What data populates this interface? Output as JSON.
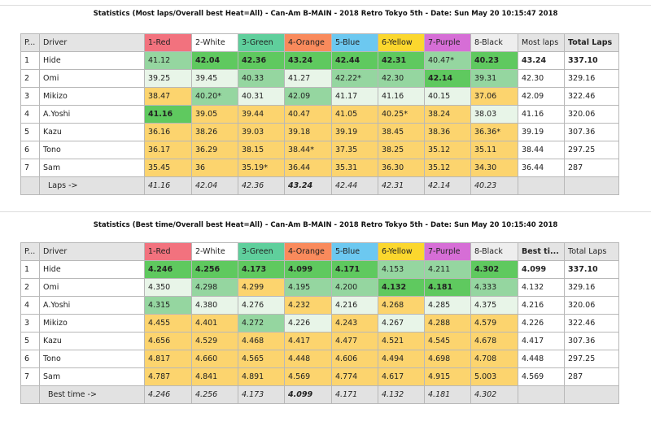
{
  "colors": {
    "G": "#5fc95f",
    "M": "#95d6a0",
    "L": "#e8f5e8",
    "Y": "#fcd46e",
    "W": "#ffffff"
  },
  "car_colors": [
    "#f2727e",
    "#ffffff",
    "#5fcf9c",
    "#f98a5c",
    "#6cc8f0",
    "#fbd72e",
    "#d66ed6",
    "#eeeeee"
  ],
  "tables": [
    {
      "title": "Statistics (Most laps/Overall best Heat=All) - Can-Am B-MAIN - 2018 Retro Tokyo 5th - Date: Sun May 20 10:15:47 2018",
      "headers": [
        "P...",
        "Driver",
        "1-Red",
        "2-White",
        "3-Green",
        "4-Orange",
        "5-Blue",
        "6-Yellow",
        "7-Purple",
        "8-Black",
        "Most laps",
        "Total Laps"
      ],
      "bold_header": 11,
      "rows": [
        {
          "p": "1",
          "driver": "Hide",
          "vals": [
            "41.12",
            "42.04",
            "42.36",
            "43.24",
            "42.44",
            "42.31",
            "40.47*",
            "40.23"
          ],
          "colors": "MGGGGGMG",
          "bold": "01111101",
          "best": "43.24",
          "total": "337.10",
          "best_bold": true,
          "total_bold": true
        },
        {
          "p": "2",
          "driver": "Omi",
          "vals": [
            "39.25",
            "39.45",
            "40.33",
            "41.27",
            "42.22*",
            "42.30",
            "42.14",
            "39.31"
          ],
          "colors": "LLMLMMGM",
          "bold": "00000010",
          "best": "42.30",
          "total": "329.16"
        },
        {
          "p": "3",
          "driver": "Mikizo",
          "vals": [
            "38.47",
            "40.20*",
            "40.31",
            "42.09",
            "41.17",
            "41.16",
            "40.15",
            "37.06"
          ],
          "colors": "YMLMLLLY",
          "bold": "00000000",
          "best": "42.09",
          "total": "322.46"
        },
        {
          "p": "4",
          "driver": "A.Yoshi",
          "vals": [
            "41.16",
            "39.05",
            "39.44",
            "40.47",
            "41.05",
            "40.25*",
            "38.24",
            "38.03"
          ],
          "colors": "GYYYYYYL",
          "bold": "10000000",
          "best": "41.16",
          "total": "320.06"
        },
        {
          "p": "5",
          "driver": "Kazu",
          "vals": [
            "36.16",
            "38.26",
            "39.03",
            "39.18",
            "39.19",
            "38.45",
            "38.36",
            "36.36*"
          ],
          "colors": "YYYYYYYY",
          "bold": "00000000",
          "best": "39.19",
          "total": "307.36"
        },
        {
          "p": "6",
          "driver": "Tono",
          "vals": [
            "36.17",
            "36.29",
            "38.15",
            "38.44*",
            "37.35",
            "38.25",
            "35.12",
            "35.11"
          ],
          "colors": "YYYYYYYY",
          "bold": "00000000",
          "best": "38.44",
          "total": "297.25"
        },
        {
          "p": "7",
          "driver": "Sam",
          "vals": [
            "35.45",
            "36",
            "35.19*",
            "36.44",
            "35.31",
            "36.30",
            "35.12",
            "34.30"
          ],
          "colors": "YYYYYYYY",
          "bold": "00000000",
          "best": "36.44",
          "total": "287"
        }
      ],
      "footer": {
        "label": "Laps ->",
        "vals": [
          "41.16",
          "42.04",
          "42.36",
          "43.24",
          "42.44",
          "42.31",
          "42.14",
          "40.23"
        ],
        "bold": "00010000"
      }
    },
    {
      "title": "Statistics (Best time/Overall best Heat=All) - Can-Am B-MAIN - 2018 Retro Tokyo 5th - Date: Sun May 20 10:15:40 2018",
      "headers": [
        "P...",
        "Driver",
        "1-Red",
        "2-White",
        "3-Green",
        "4-Orange",
        "5-Blue",
        "6-Yellow",
        "7-Purple",
        "8-Black",
        "Best ti...",
        "Total Laps"
      ],
      "bold_header": 10,
      "rows": [
        {
          "p": "1",
          "driver": "Hide",
          "vals": [
            "4.246",
            "4.256",
            "4.173",
            "4.099",
            "4.171",
            "4.153",
            "4.211",
            "4.302"
          ],
          "colors": "GGGGGMMG",
          "bold": "11111001",
          "best": "4.099",
          "total": "337.10",
          "best_bold": true,
          "total_bold": true
        },
        {
          "p": "2",
          "driver": "Omi",
          "vals": [
            "4.350",
            "4.298",
            "4.299",
            "4.195",
            "4.200",
            "4.132",
            "4.181",
            "4.333"
          ],
          "colors": "LMYMMGGM",
          "bold": "00000110",
          "best": "4.132",
          "total": "329.16"
        },
        {
          "p": "4",
          "driver": "A.Yoshi",
          "vals": [
            "4.315",
            "4.380",
            "4.276",
            "4.232",
            "4.216",
            "4.268",
            "4.285",
            "4.375"
          ],
          "colors": "MLLYLYLL",
          "bold": "00000000",
          "best": "4.216",
          "total": "320.06"
        },
        {
          "p": "3",
          "driver": "Mikizo",
          "vals": [
            "4.455",
            "4.401",
            "4.272",
            "4.226",
            "4.243",
            "4.267",
            "4.288",
            "4.579"
          ],
          "colors": "YYMLYLYY",
          "bold": "00000000",
          "best": "4.226",
          "total": "322.46"
        },
        {
          "p": "5",
          "driver": "Kazu",
          "vals": [
            "4.656",
            "4.529",
            "4.468",
            "4.417",
            "4.477",
            "4.521",
            "4.545",
            "4.678"
          ],
          "colors": "YYYYYYYY",
          "bold": "00000000",
          "best": "4.417",
          "total": "307.36"
        },
        {
          "p": "6",
          "driver": "Tono",
          "vals": [
            "4.817",
            "4.660",
            "4.565",
            "4.448",
            "4.606",
            "4.494",
            "4.698",
            "4.708"
          ],
          "colors": "YYYYYYYY",
          "bold": "00000000",
          "best": "4.448",
          "total": "297.25"
        },
        {
          "p": "7",
          "driver": "Sam",
          "vals": [
            "4.787",
            "4.841",
            "4.891",
            "4.569",
            "4.774",
            "4.617",
            "4.915",
            "5.003"
          ],
          "colors": "YYYYYYYY",
          "bold": "00000000",
          "best": "4.569",
          "total": "287"
        }
      ],
      "footer": {
        "label": "Best time ->",
        "vals": [
          "4.246",
          "4.256",
          "4.173",
          "4.099",
          "4.171",
          "4.132",
          "4.181",
          "4.302"
        ],
        "bold": "00010000"
      }
    }
  ]
}
